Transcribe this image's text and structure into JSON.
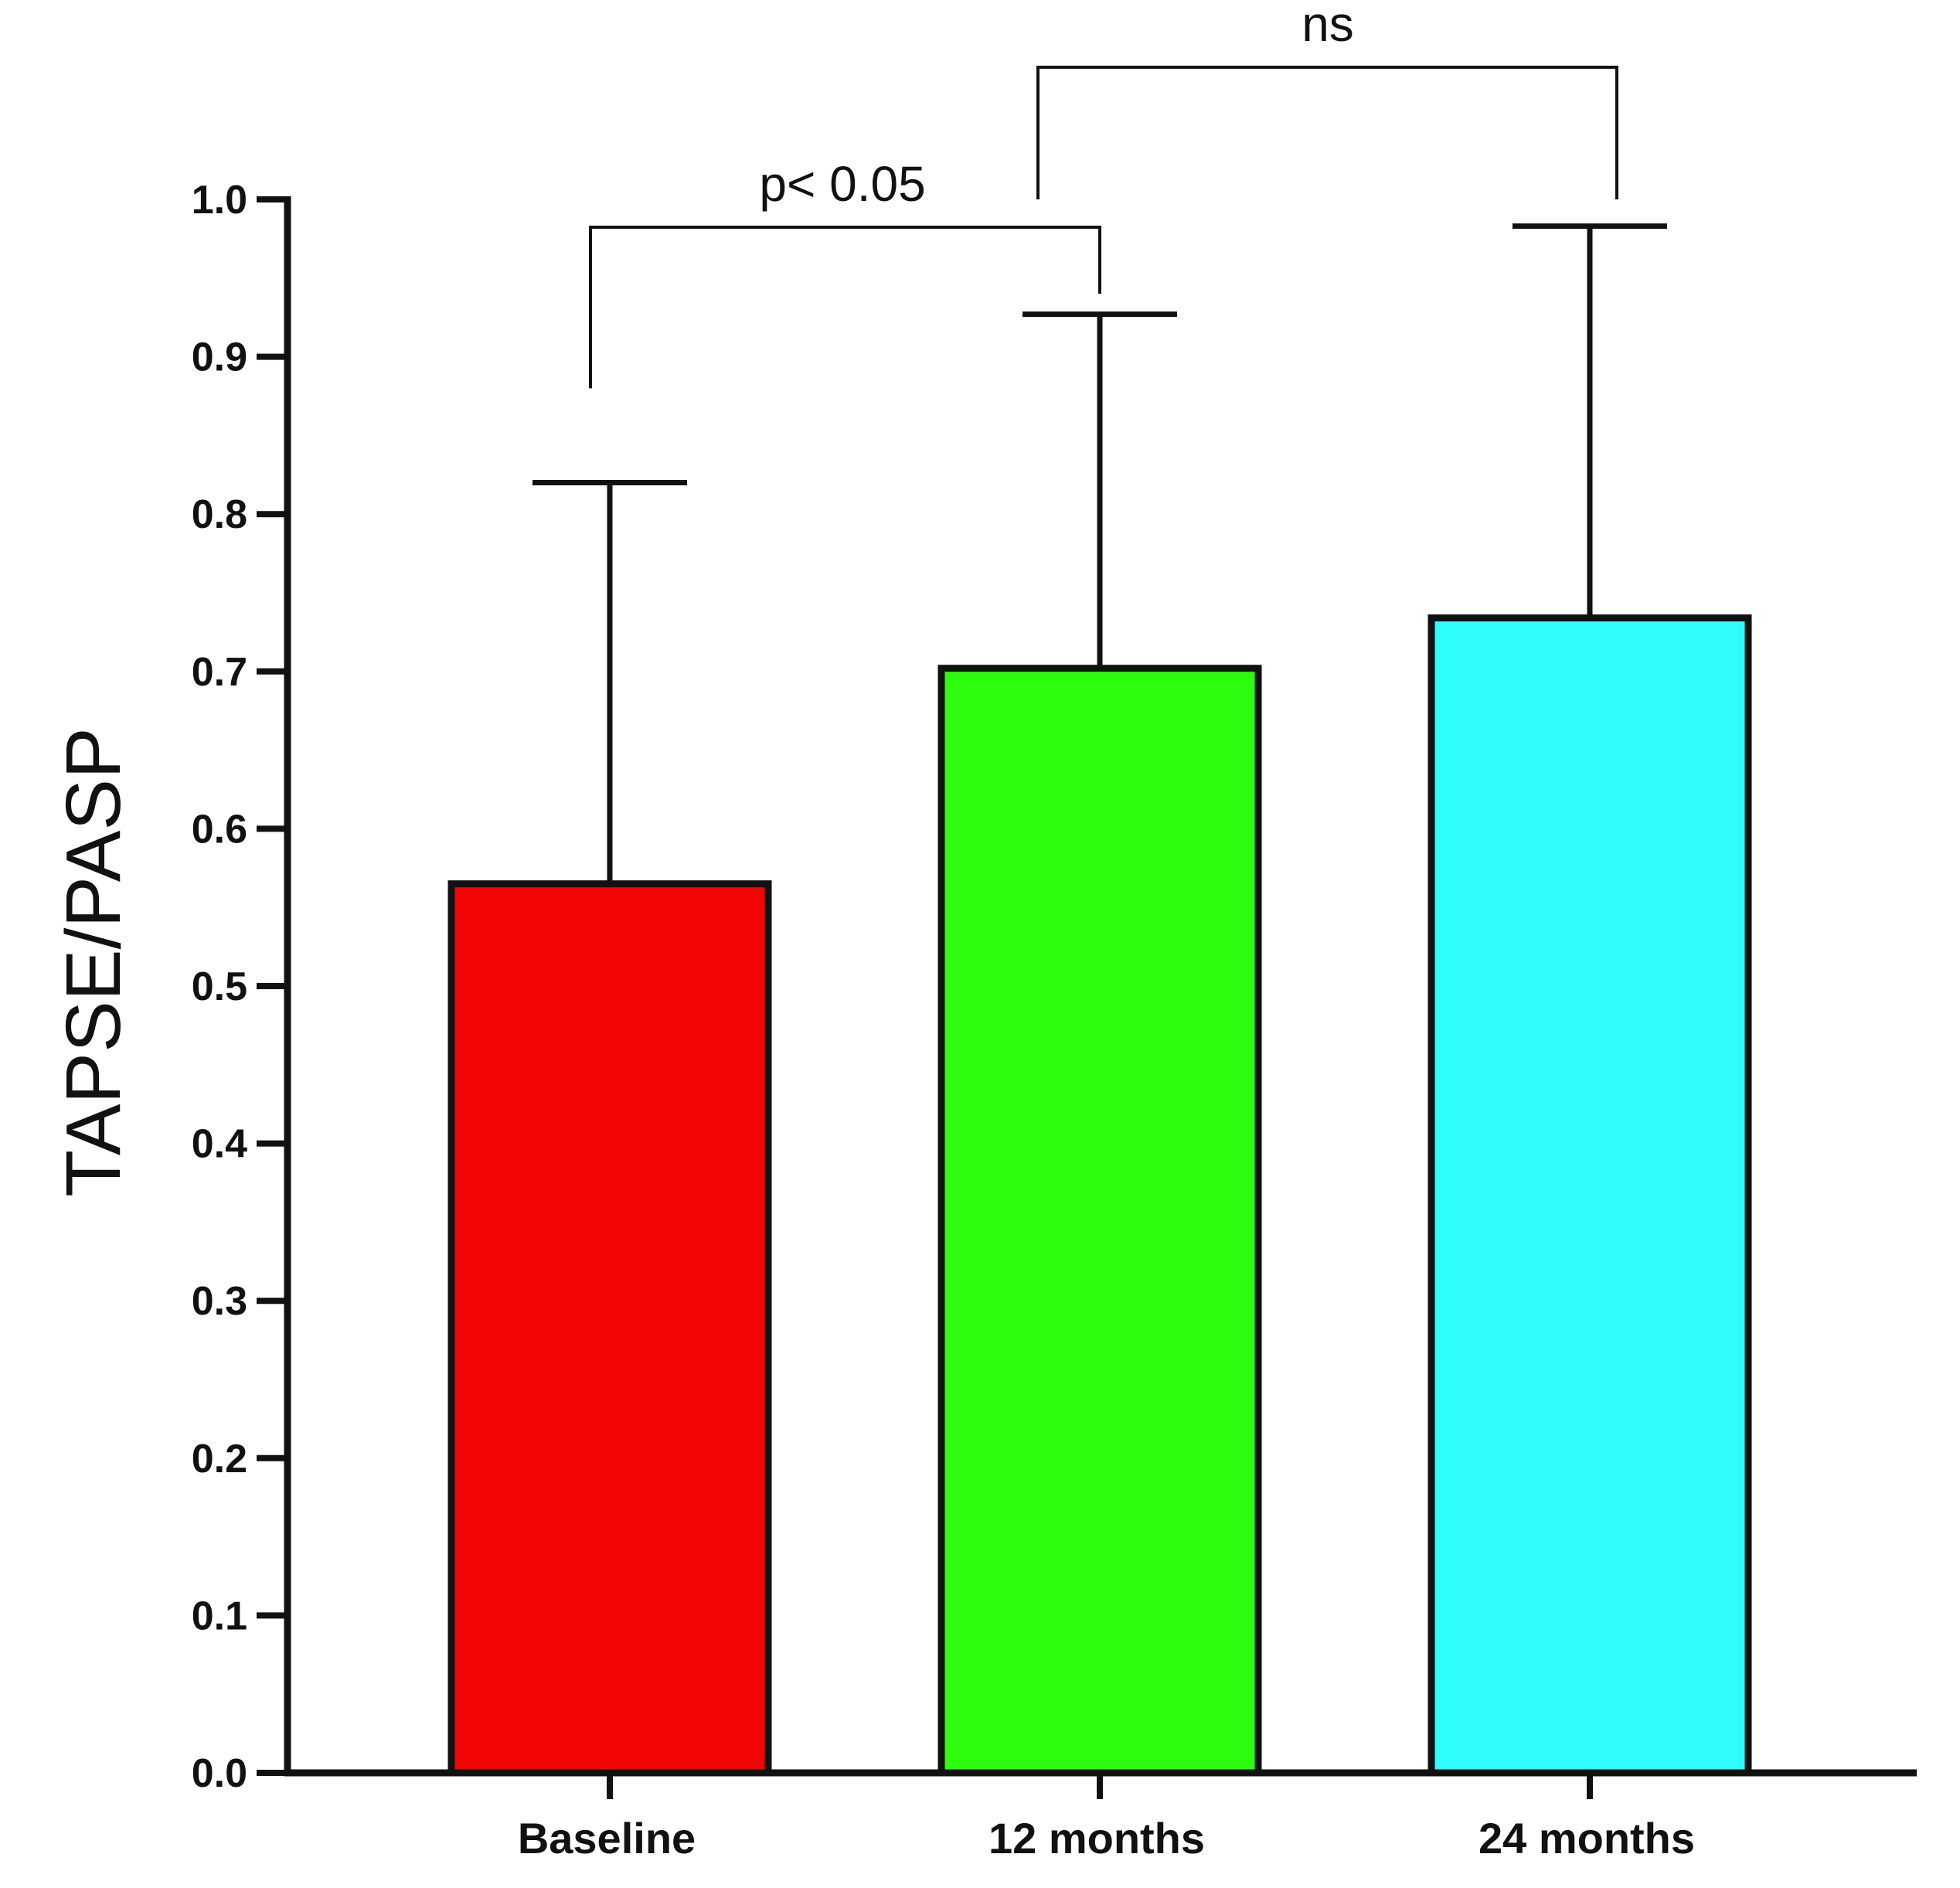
{
  "chart_data": {
    "type": "bar",
    "title": "",
    "xlabel": "",
    "ylabel": "TAPSE/PASP",
    "categories": [
      "Baseline",
      "12 months",
      "24 months"
    ],
    "values": [
      0.565,
      0.702,
      0.734
    ],
    "error_upper": [
      0.82,
      0.927,
      0.983
    ],
    "colors": [
      "#f20505",
      "#2efc0f",
      "#2ffcfc"
    ],
    "ylim": [
      0.0,
      1.0
    ],
    "yticks": [
      "0.0",
      "0.1",
      "0.2",
      "0.3",
      "0.4",
      "0.5",
      "0.6",
      "0.7",
      "0.8",
      "0.9",
      "1.0"
    ],
    "grid": false,
    "annotations": [
      {
        "label": "p< 0.05",
        "from": "Baseline",
        "to": "12 months",
        "level": 1.0
      },
      {
        "label": "ns",
        "from": "12 months",
        "to": "24 months",
        "level": 1.085
      }
    ]
  }
}
